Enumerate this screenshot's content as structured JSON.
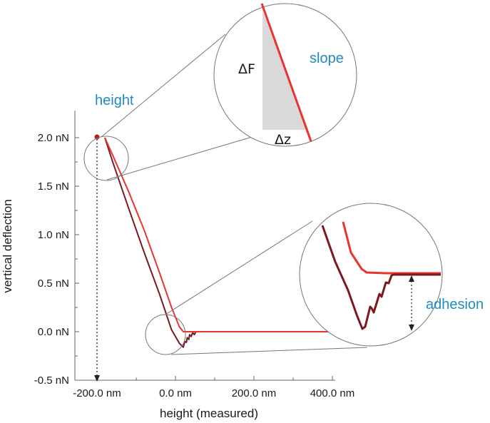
{
  "chart_data": {
    "type": "line",
    "xlabel": "height (measured)",
    "ylabel": "vertical deflection",
    "xlim": [
      -250,
      480
    ],
    "ylim": [
      -0.5,
      2.2
    ],
    "x_ticks": [
      {
        "value": -200,
        "label": "-200.0 nm"
      },
      {
        "value": 0,
        "label": "0.0 nm"
      },
      {
        "value": 200,
        "label": "200.0 nm"
      },
      {
        "value": 400,
        "label": "400.0 nm"
      }
    ],
    "y_ticks": [
      {
        "value": -0.5,
        "label": "-0.5 nN"
      },
      {
        "value": 0.0,
        "label": "0.0 nN"
      },
      {
        "value": 0.5,
        "label": "0.5 nN"
      },
      {
        "value": 1.0,
        "label": "1.0 nN"
      },
      {
        "value": 1.5,
        "label": "1.5 nN"
      },
      {
        "value": 2.0,
        "label": "2.0 nN"
      }
    ],
    "series": [
      {
        "color": "#e8332f",
        "x": [
          -180,
          -160,
          -120,
          -80,
          -40,
          -10,
          10,
          20,
          25,
          40,
          60,
          80,
          120,
          160,
          200,
          250,
          300,
          350,
          400,
          445
        ],
        "y": [
          2.0,
          1.82,
          1.45,
          1.05,
          0.6,
          0.25,
          0.05,
          0.0,
          0.0,
          0.0,
          0.0,
          0.0,
          0.0,
          0.0,
          0.0,
          0.0,
          0.0,
          0.0,
          0.0,
          0.0
        ]
      },
      {
        "color": "#7a1a1f",
        "x": [
          -180,
          -160,
          -120,
          -80,
          -40,
          -10,
          10,
          20,
          24,
          28,
          30,
          34,
          36,
          40,
          44,
          48,
          52,
          56,
          60,
          80,
          120,
          160,
          200,
          250,
          300,
          350,
          400,
          445
        ],
        "y": [
          2.0,
          1.75,
          1.28,
          0.82,
          0.38,
          0.02,
          -0.12,
          -0.16,
          -0.1,
          -0.11,
          -0.06,
          -0.08,
          -0.03,
          -0.05,
          -0.01,
          -0.03,
          0.0,
          0.0,
          0.0,
          0.0,
          0.0,
          0.0,
          0.0,
          0.0,
          0.0,
          0.0,
          0.0,
          0.0
        ]
      }
    ],
    "annotations": {
      "height_label": "height",
      "slope_label": "slope",
      "adhesion_label": "adhesion",
      "delta_f": "ΔF",
      "delta_z": "Δz"
    },
    "colors": {
      "approach": "#e8332f",
      "retract": "#7a1a1f",
      "annotation": "#1f8bc0",
      "shade": "#d9d9d9"
    }
  }
}
